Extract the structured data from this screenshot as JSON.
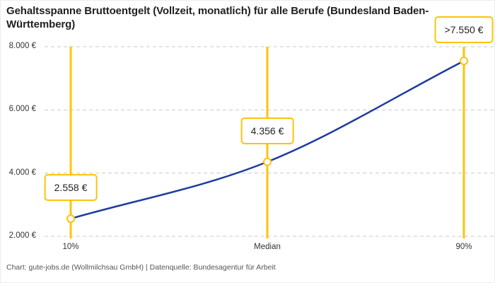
{
  "header": {
    "title": "Gehaltsspanne Bruttoentgelt (Vollzeit, monatlich) für alle Berufe (Bundesland Baden-Württemberg)"
  },
  "footer": {
    "attribution": "Chart: gute-jobs.de (Wollmilchsau GmbH) | Datenquelle: Bundesagentur für Arbeit"
  },
  "chart_data": {
    "type": "line",
    "title": "Gehaltsspanne Bruttoentgelt (Vollzeit, monatlich) für alle Berufe (Bundesland Baden-Württemberg)",
    "x_categories": [
      "10%",
      "Median",
      "90%"
    ],
    "values": [
      2558,
      4356,
      7550
    ],
    "value_labels": [
      "2.558 €",
      "4.356 €",
      ">7.550 €"
    ],
    "y_ticks": [
      2000,
      4000,
      6000,
      8000
    ],
    "y_tick_labels": [
      "2.000 €",
      "4.000 €",
      "6.000 €",
      "8.000 €"
    ],
    "ylim": [
      2000,
      8000
    ],
    "grid": "horizontal-dashed",
    "legend": "none",
    "colors": {
      "line": "#1E3C9E",
      "accent": "#FFC30B",
      "grid": "#C9C9C9",
      "marker_fill": "#FFFFFF"
    }
  }
}
